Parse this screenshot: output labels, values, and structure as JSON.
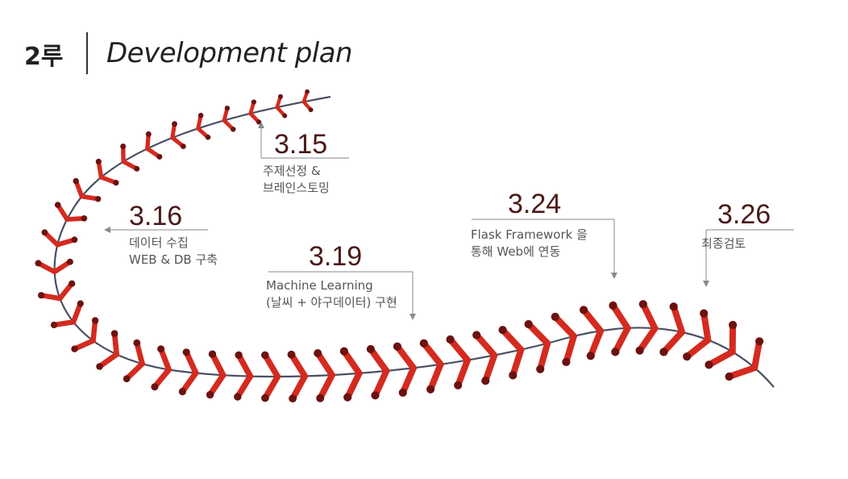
{
  "header": {
    "base_label": "2루",
    "title": "Development plan"
  },
  "milestones": [
    {
      "date": "3.15",
      "lines": [
        "주제선정 &",
        "브레인스토밍"
      ]
    },
    {
      "date": "3.16",
      "lines": [
        "데이터 수집",
        "WEB & DB 구축"
      ]
    },
    {
      "date": "3.19",
      "lines": [
        "Machine Learning",
        "(날씨 + 야구데이터) 구현"
      ]
    },
    {
      "date": "3.24",
      "lines": [
        "Flask Framework 을",
        "통해  Web에 연동"
      ]
    },
    {
      "date": "3.26",
      "lines": [
        "최종검토"
      ]
    }
  ],
  "colors": {
    "stitch": "#d42a1f",
    "stitch_dot": "#6b1210",
    "seam": "#4a4f63",
    "date_text": "#4a1a18",
    "desc_text": "#555555",
    "rule_line": "#8a8a8a"
  }
}
